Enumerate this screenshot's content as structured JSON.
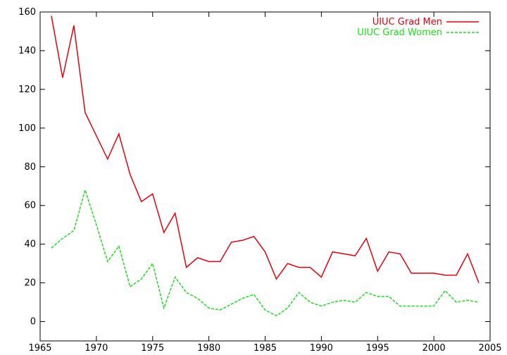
{
  "chart_data": {
    "type": "line",
    "title": "",
    "xlabel": "",
    "ylabel": "",
    "xlim": [
      1965,
      2005
    ],
    "ylim": [
      -10,
      160
    ],
    "xticks": [
      1965,
      1970,
      1975,
      1980,
      1985,
      1990,
      1995,
      2000,
      2005
    ],
    "yticks": [
      0,
      20,
      40,
      60,
      80,
      100,
      120,
      140,
      160
    ],
    "grid": false,
    "legend_position": "top-right",
    "series": [
      {
        "name": "UIUC Grad Men",
        "color": "#e8000b",
        "style": "solid",
        "x": [
          1966,
          1967,
          1968,
          1969,
          1970,
          1971,
          1972,
          1973,
          1974,
          1975,
          1976,
          1977,
          1978,
          1979,
          1980,
          1981,
          1982,
          1983,
          1984,
          1985,
          1986,
          1987,
          1988,
          1989,
          1990,
          1991,
          1992,
          1993,
          1994,
          1995,
          1996,
          1997,
          1998,
          1999,
          2000,
          2001,
          2002,
          2003,
          2004
        ],
        "y": [
          158,
          126,
          153,
          108,
          96,
          84,
          97,
          76,
          62,
          66,
          46,
          56,
          28,
          33,
          31,
          31,
          41,
          42,
          44,
          36,
          22,
          30,
          28,
          28,
          23,
          36,
          35,
          34,
          43,
          26,
          36,
          35,
          25,
          25,
          25,
          24,
          24,
          35,
          20
        ]
      },
      {
        "name": "UIUC Grad Women",
        "color": "#18e018",
        "style": "dashed",
        "x": [
          1966,
          1967,
          1968,
          1969,
          1970,
          1971,
          1972,
          1973,
          1974,
          1975,
          1976,
          1977,
          1978,
          1979,
          1980,
          1981,
          1982,
          1983,
          1984,
          1985,
          1986,
          1987,
          1988,
          1989,
          1990,
          1991,
          1992,
          1993,
          1994,
          1995,
          1996,
          1997,
          1998,
          1999,
          2000,
          2001,
          2002,
          2003,
          2004
        ],
        "y": [
          38,
          43,
          47,
          68,
          50,
          31,
          39,
          18,
          22,
          30,
          7,
          23,
          15,
          12,
          7,
          6,
          9,
          12,
          14,
          6,
          3,
          7,
          15,
          10,
          8,
          10,
          11,
          10,
          15,
          13,
          13,
          8,
          8,
          8,
          8,
          16,
          10,
          11,
          10
        ]
      }
    ]
  }
}
